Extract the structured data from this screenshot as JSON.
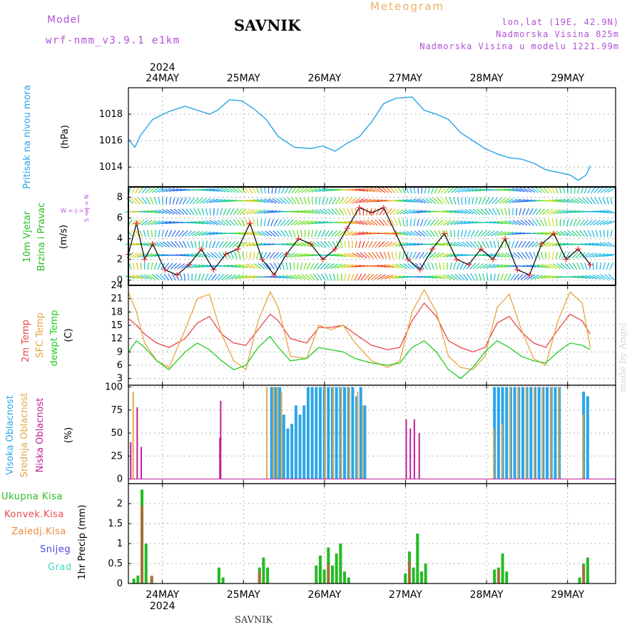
{
  "header": {
    "model_label": "Model",
    "model_name": "wrf-nmm_v3.9.1 e1km",
    "station": "SAVNIK",
    "product": "Meteogram",
    "lonlat": "lon,lat (19E, 42.9N)",
    "altitude": "Nadmorska Visina 825m",
    "altitude_model": "Nadmorska Visina u modelu 1221.99m"
  },
  "footer": {
    "station": "SAVNIK",
    "credit": "made by Angel"
  },
  "colors": {
    "pressure": "#29a3e8",
    "wind_label": "#22bb22",
    "t2m": "#e84848",
    "sfc": "#e8a440",
    "dewpt": "#22cc22",
    "cloud_high": "#2aa6ea",
    "cloud_mid": "#e0a84a",
    "cloud_low": "#c01f9a",
    "precip_total": "#22bb22",
    "precip_conv": "#e84848",
    "precip_strat": "#f0873a",
    "snow": "#4848e0",
    "hail": "#40d8c0"
  },
  "chart_data": [
    {
      "type": "line",
      "id": "pressure",
      "ylabel": "Pritisak na nivou mora",
      "unit": "(hPa)",
      "xrange": [
        0,
        6
      ],
      "ylim": [
        1012.5,
        1020
      ],
      "yticks": [
        1014,
        1016,
        1018
      ],
      "top_year": "2024",
      "day_labels": [
        "24MAY",
        "25MAY",
        "26MAY",
        "27MAY",
        "28MAY",
        "29MAY"
      ],
      "series": [
        {
          "x": [
            0,
            0.08,
            0.15,
            0.3,
            0.5,
            0.7,
            0.85,
            1.0,
            1.1,
            1.25,
            1.4,
            1.55,
            1.7,
            1.85,
            2.05,
            2.25,
            2.4,
            2.55,
            2.7,
            2.85,
            3.0,
            3.15,
            3.3,
            3.5,
            3.65,
            3.8,
            3.95,
            4.1,
            4.25,
            4.4,
            4.55,
            4.7,
            4.85,
            5.0,
            5.15,
            5.3,
            5.45,
            5.55,
            5.65,
            5.7
          ],
          "y": [
            1016.1,
            1015.5,
            1016.4,
            1017.6,
            1018.2,
            1018.6,
            1018.3,
            1018.0,
            1018.3,
            1019.1,
            1019.0,
            1018.4,
            1017.6,
            1016.3,
            1015.5,
            1015.4,
            1015.6,
            1015.2,
            1015.8,
            1016.3,
            1017.4,
            1018.8,
            1019.2,
            1019.3,
            1018.3,
            1018.0,
            1017.6,
            1016.6,
            1016.0,
            1015.4,
            1015.0,
            1014.7,
            1014.6,
            1014.3,
            1013.8,
            1013.6,
            1013.4,
            1013.0,
            1013.4,
            1014.1
          ]
        }
      ]
    },
    {
      "type": "line",
      "id": "wind",
      "ylabel": "10m Vjetar",
      "ylabel2": "Brzina i Pravac",
      "unit": "(m/s)",
      "compass": "W <-|-> E",
      "compass_ns": "S <-|-> N",
      "xrange": [
        0,
        6
      ],
      "ylim": [
        -0.5,
        9
      ],
      "yticks": [
        0,
        2,
        4,
        6,
        8
      ],
      "series": [
        {
          "x": [
            0,
            0.1,
            0.2,
            0.3,
            0.45,
            0.6,
            0.75,
            0.9,
            1.05,
            1.2,
            1.35,
            1.5,
            1.65,
            1.8,
            1.95,
            2.1,
            2.25,
            2.4,
            2.55,
            2.7,
            2.85,
            3.0,
            3.15,
            3.3,
            3.45,
            3.6,
            3.75,
            3.9,
            4.05,
            4.2,
            4.35,
            4.5,
            4.65,
            4.8,
            4.95,
            5.1,
            5.25,
            5.4,
            5.55,
            5.7
          ],
          "y": [
            2.5,
            5.5,
            2.0,
            3.5,
            1.0,
            0.5,
            1.5,
            3.0,
            1.0,
            2.5,
            3.0,
            5.5,
            2.0,
            0.5,
            2.5,
            4.0,
            3.5,
            2.0,
            3.0,
            5.0,
            7.0,
            6.5,
            7.0,
            4.5,
            2.0,
            1.0,
            3.0,
            4.5,
            2.0,
            1.5,
            3.0,
            2.0,
            4.0,
            1.0,
            0.5,
            3.5,
            4.5,
            2.0,
            3.0,
            1.5
          ]
        }
      ]
    },
    {
      "type": "line",
      "id": "temperature",
      "ylabel": "2m Temp",
      "ylabel_mid": "SFC Temp",
      "ylabel_dew": "dewpt Temp",
      "unit": "(C)",
      "xrange": [
        0,
        6
      ],
      "ylim": [
        1.5,
        24
      ],
      "yticks": [
        3,
        6,
        9,
        12,
        15,
        18,
        21,
        24
      ],
      "series": [
        {
          "name": "2m Temp",
          "x": [
            0,
            0.1,
            0.2,
            0.35,
            0.5,
            0.7,
            0.85,
            1.0,
            1.15,
            1.3,
            1.45,
            1.6,
            1.75,
            1.85,
            2.0,
            2.2,
            2.35,
            2.5,
            2.65,
            2.8,
            3.0,
            3.2,
            3.35,
            3.5,
            3.65,
            3.8,
            3.95,
            4.1,
            4.25,
            4.4,
            4.55,
            4.7,
            4.85,
            5.0,
            5.15,
            5.3,
            5.45,
            5.6,
            5.7
          ],
          "y": [
            16.5,
            15.0,
            13.0,
            11.0,
            10.0,
            12.0,
            15.5,
            17.0,
            13.0,
            11.0,
            10.5,
            14.0,
            17.5,
            16.0,
            12.0,
            11.0,
            14.5,
            14.5,
            15.0,
            13.0,
            10.5,
            9.5,
            10.0,
            16.0,
            20.0,
            17.0,
            11.5,
            10.0,
            9.0,
            10.0,
            15.5,
            17.0,
            13.5,
            11.0,
            10.0,
            14.0,
            17.5,
            16.0,
            13.0
          ]
        },
        {
          "name": "SFC Temp",
          "x": [
            0,
            0.1,
            0.2,
            0.35,
            0.5,
            0.7,
            0.85,
            1.0,
            1.15,
            1.3,
            1.45,
            1.6,
            1.75,
            1.85,
            2.0,
            2.2,
            2.35,
            2.5,
            2.65,
            2.8,
            3.0,
            3.2,
            3.35,
            3.5,
            3.65,
            3.8,
            3.95,
            4.1,
            4.25,
            4.4,
            4.55,
            4.7,
            4.85,
            5.0,
            5.15,
            5.3,
            5.45,
            5.6,
            5.7
          ],
          "y": [
            22.5,
            18.0,
            11.0,
            7.0,
            5.5,
            14.0,
            21.0,
            22.0,
            13.0,
            7.0,
            5.0,
            16.0,
            22.5,
            19.0,
            8.0,
            7.5,
            15.0,
            14.0,
            15.0,
            11.0,
            7.0,
            5.5,
            7.0,
            18.0,
            23.0,
            18.0,
            8.0,
            5.5,
            5.0,
            8.0,
            19.0,
            22.0,
            14.0,
            7.5,
            6.0,
            16.0,
            22.5,
            20.0,
            10.0
          ]
        },
        {
          "name": "dewpt Temp",
          "x": [
            0,
            0.1,
            0.2,
            0.35,
            0.5,
            0.7,
            0.85,
            1.0,
            1.15,
            1.3,
            1.45,
            1.6,
            1.75,
            1.85,
            2.0,
            2.2,
            2.35,
            2.5,
            2.65,
            2.8,
            3.0,
            3.2,
            3.35,
            3.5,
            3.65,
            3.8,
            3.95,
            4.1,
            4.25,
            4.4,
            4.55,
            4.7,
            4.85,
            5.0,
            5.15,
            5.3,
            5.45,
            5.6,
            5.7
          ],
          "y": [
            9.0,
            11.5,
            10.0,
            7.0,
            5.0,
            9.0,
            11.0,
            9.5,
            7.0,
            5.0,
            6.0,
            10.0,
            12.5,
            10.0,
            7.0,
            7.5,
            10.0,
            9.5,
            9.0,
            7.5,
            6.5,
            6.0,
            6.5,
            10.0,
            11.5,
            9.0,
            5.0,
            3.0,
            5.5,
            9.0,
            11.5,
            10.0,
            8.0,
            7.0,
            6.5,
            9.0,
            11.0,
            10.5,
            9.5
          ]
        }
      ]
    },
    {
      "type": "bar",
      "id": "clouds",
      "ylabel_high": "Visoka Oblacnost",
      "ylabel_mid": "Srednja Oblacnost",
      "ylabel_low": "Niska Oblacnost",
      "unit": "(%)",
      "xrange": [
        0,
        6
      ],
      "ylim": [
        -5,
        102
      ],
      "yticks": [
        0,
        25,
        50,
        75,
        100
      ],
      "series": [
        {
          "name": "Visoka Oblacnost",
          "x": [
            1.75,
            1.8,
            1.85,
            1.9,
            1.95,
            2.0,
            2.05,
            2.1,
            2.15,
            2.2,
            2.25,
            2.3,
            2.35,
            2.4,
            2.45,
            2.5,
            2.55,
            2.6,
            2.65,
            2.7,
            2.75,
            2.8,
            2.85,
            2.9,
            4.5,
            4.55,
            4.6,
            4.65,
            4.7,
            4.75,
            4.8,
            4.85,
            4.9,
            4.95,
            5.0,
            5.05,
            5.1,
            5.15,
            5.2,
            5.25,
            5.3,
            5.6,
            5.65
          ],
          "y": [
            100,
            100,
            100,
            70,
            55,
            60,
            80,
            70,
            80,
            100,
            100,
            100,
            100,
            100,
            100,
            100,
            100,
            100,
            100,
            100,
            100,
            90,
            100,
            80,
            100,
            100,
            100,
            100,
            100,
            100,
            100,
            100,
            100,
            100,
            100,
            100,
            100,
            100,
            100,
            100,
            100,
            95,
            90
          ]
        },
        {
          "name": "Srednja Oblacnost",
          "x": [
            0.05,
            1.7,
            1.78,
            1.83,
            1.88,
            2.42,
            2.52,
            2.62,
            2.72,
            2.82,
            2.88,
            4.5,
            4.6,
            4.7,
            4.8,
            4.9,
            5.0,
            5.1,
            5.2,
            5.3,
            5.6
          ],
          "y": [
            95,
            100,
            100,
            100,
            95,
            100,
            100,
            100,
            100,
            95,
            80,
            55,
            60,
            100,
            100,
            100,
            100,
            100,
            100,
            100,
            70
          ]
        },
        {
          "name": "Niska Oblacnost",
          "x": [
            0.02,
            0.1,
            0.15,
            1.12,
            1.13,
            3.42,
            3.47,
            3.52,
            3.58
          ],
          "y": [
            40,
            78,
            35,
            45,
            85,
            65,
            55,
            65,
            50
          ]
        }
      ]
    },
    {
      "type": "bar",
      "id": "precip",
      "ylabel": "1hr Precip",
      "unit": "(mm)",
      "legend": [
        "Ukupna Kisa",
        "Konvek.Kisa",
        "Zaledj.Kisa",
        "Snijeg",
        "Grad"
      ],
      "xrange": [
        0,
        6
      ],
      "ylim": [
        0,
        2.5
      ],
      "yticks": [
        0,
        0.5,
        1,
        1.5,
        2
      ],
      "ytick_labels": [
        "0",
        "0.5",
        "1",
        "1.5",
        "2"
      ],
      "bottom_year": "2024",
      "day_labels": [
        "24MAY",
        "25MAY",
        "26MAY",
        "27MAY",
        "28MAY",
        "29MAY"
      ],
      "series": [
        {
          "name": "Ukupna Kisa",
          "x": [
            0.05,
            0.1,
            0.15,
            0.2,
            0.27,
            1.1,
            1.15,
            1.6,
            1.65,
            1.7,
            2.3,
            2.35,
            2.4,
            2.45,
            2.5,
            2.55,
            2.6,
            2.65,
            2.7,
            3.4,
            3.45,
            3.5,
            3.55,
            3.6,
            3.65,
            4.5,
            4.55,
            4.6,
            4.65,
            5.55,
            5.6,
            5.65
          ],
          "y": [
            0.12,
            0.2,
            2.35,
            1.0,
            0.18,
            0.4,
            0.15,
            0.4,
            0.65,
            0.4,
            0.45,
            0.7,
            0.35,
            0.9,
            0.45,
            0.75,
            1.0,
            0.3,
            0.15,
            0.25,
            0.8,
            0.4,
            1.25,
            0.3,
            0.5,
            0.35,
            0.4,
            0.75,
            0.3,
            0.15,
            0.5,
            0.65
          ]
        },
        {
          "name": "Konvek.Kisa",
          "x": [
            0.15,
            0.27,
            1.6,
            2.45,
            3.45,
            4.55,
            5.6
          ],
          "y": [
            1.95,
            0.2,
            0.3,
            0.5,
            0.55,
            0.35,
            0.45
          ]
        }
      ]
    }
  ]
}
